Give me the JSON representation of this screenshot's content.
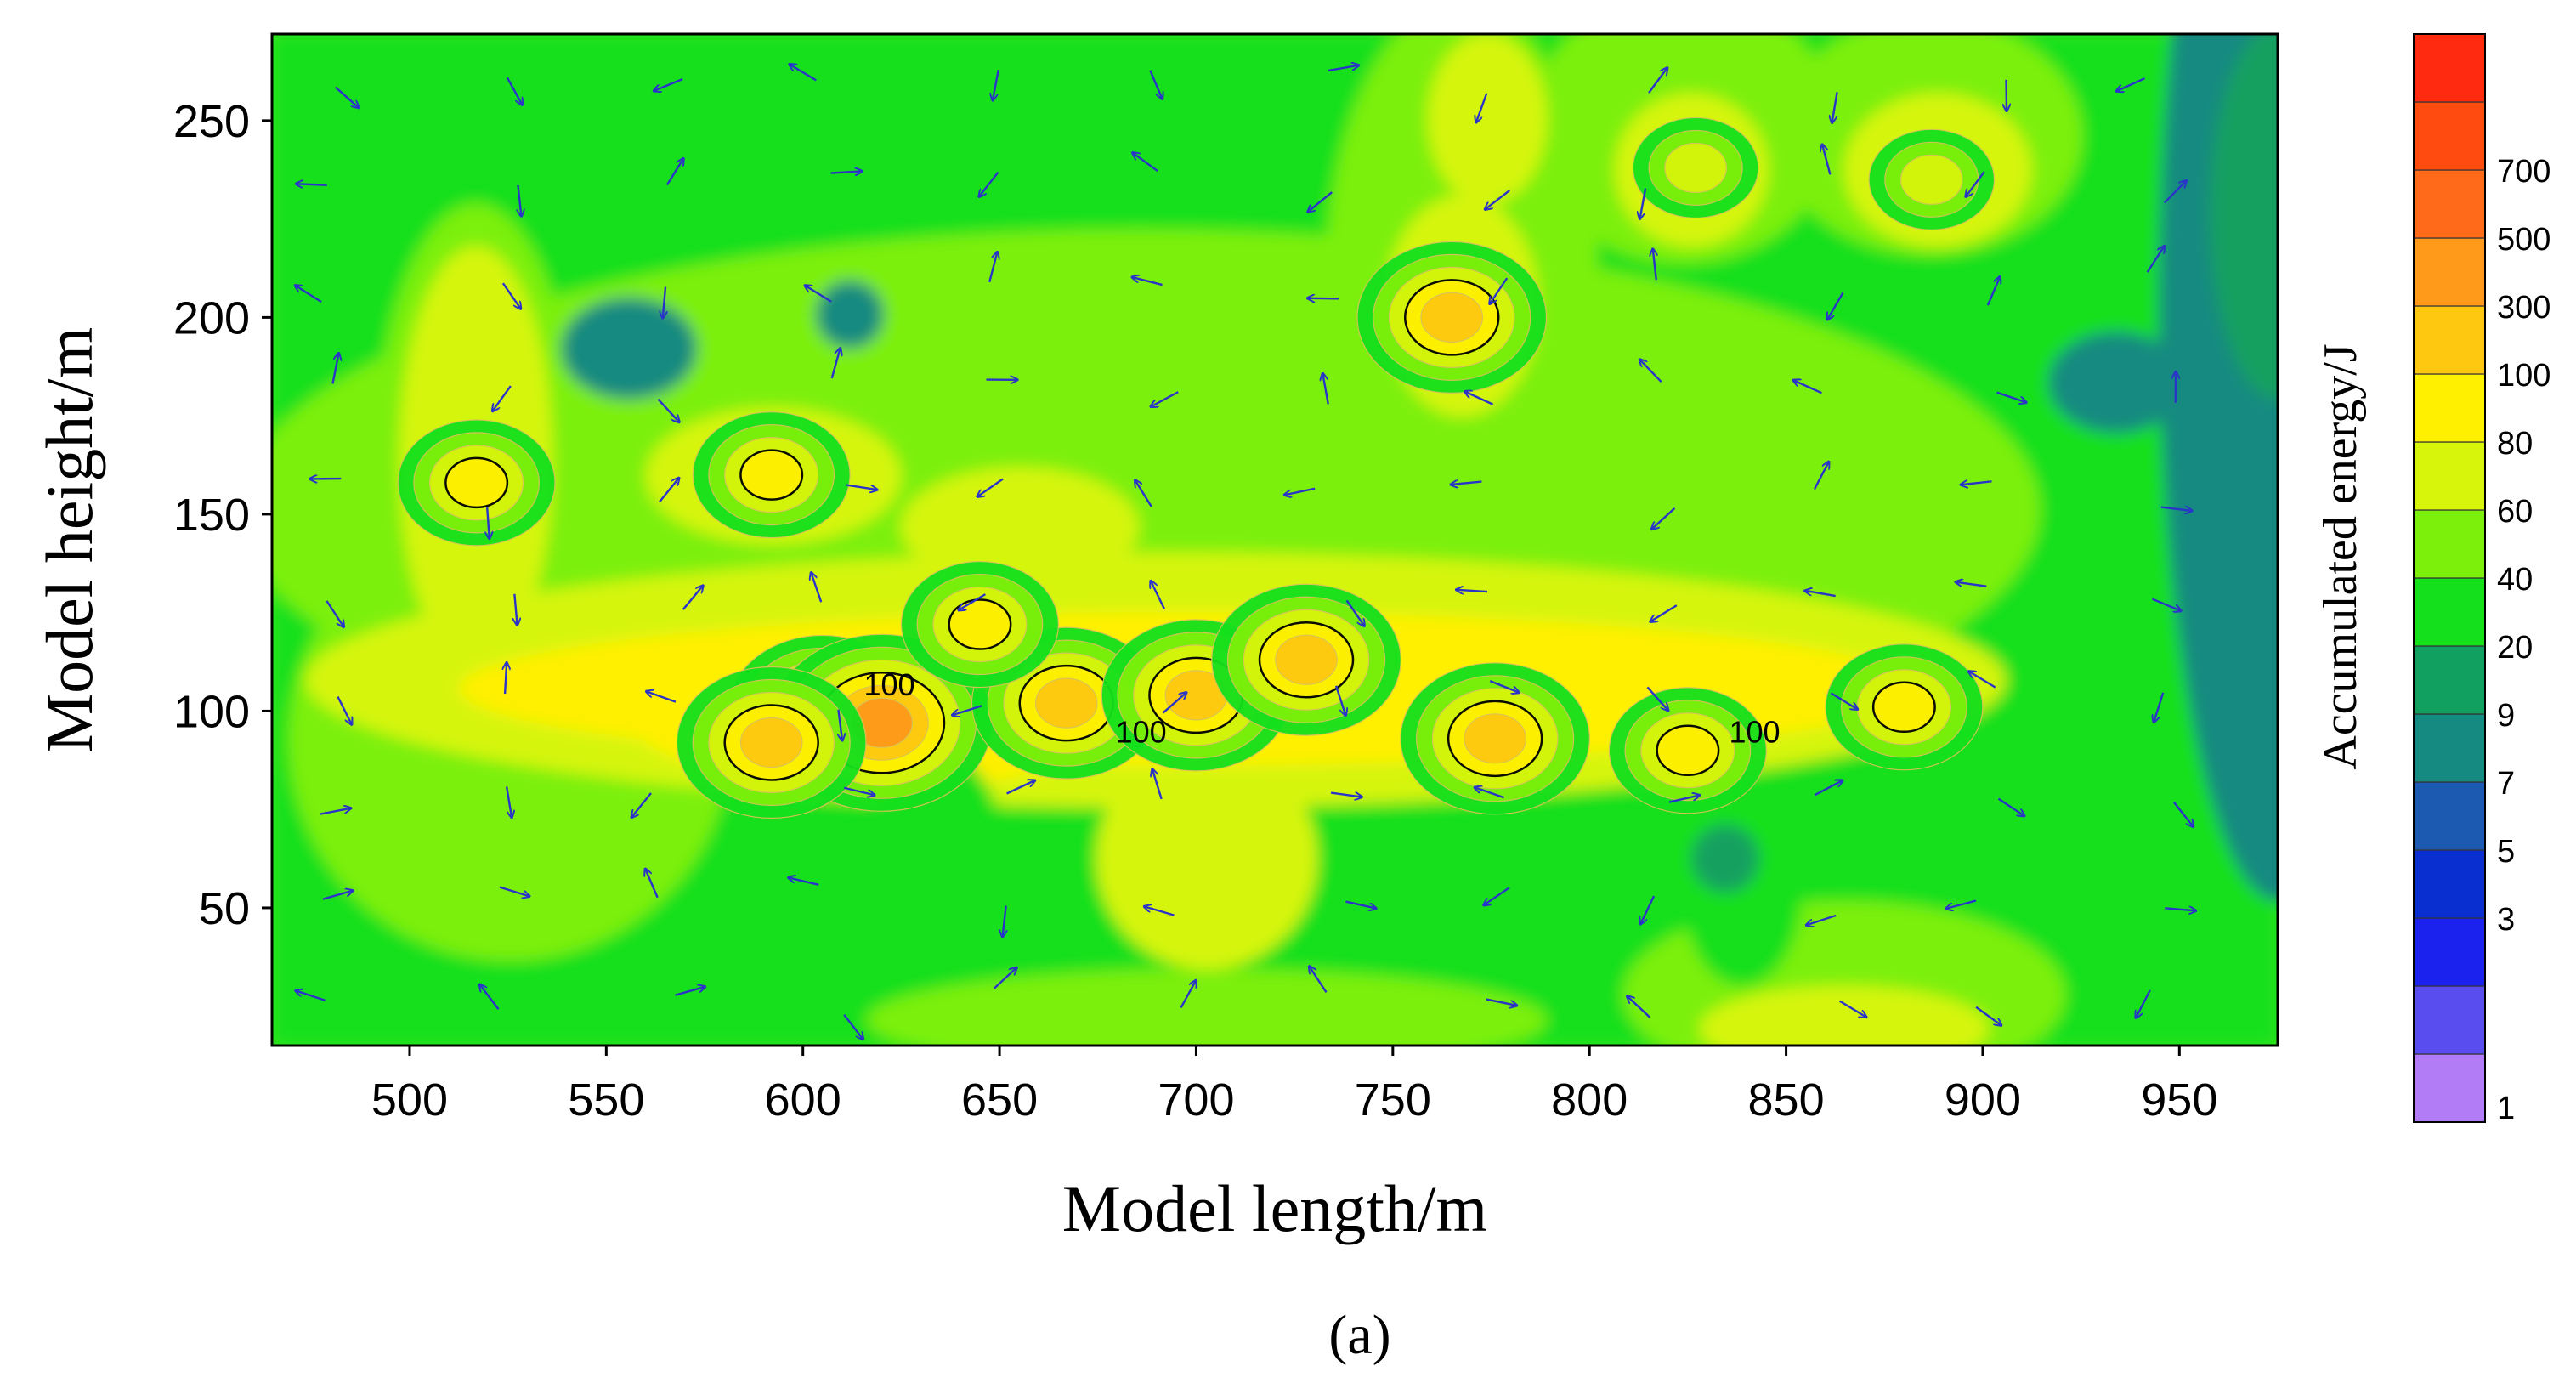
{
  "chart_data": {
    "type": "heatmap",
    "subtype": "filled-contour with flow-direction vectors",
    "xlabel": "Model length/m",
    "ylabel": "Model height/m",
    "xlim": [
      465,
      975
    ],
    "ylim": [
      15,
      272
    ],
    "xticks": [
      500,
      550,
      600,
      650,
      700,
      750,
      800,
      850,
      900,
      950
    ],
    "yticks": [
      50,
      100,
      150,
      200,
      250
    ],
    "colorbar": {
      "title": "Accumulated energy/J",
      "levels": [
        1,
        3,
        5,
        7,
        9,
        20,
        40,
        60,
        80,
        100,
        300,
        500,
        700
      ],
      "colors": [
        "#b27cf6",
        "#5a4df0",
        "#1b22ee",
        "#0a2fd0",
        "#1b5ab0",
        "#158a80",
        "#12a060",
        "#14e01c",
        "#7cf00a",
        "#d6f50a",
        "#fff000",
        "#ffc810",
        "#ff9a1a",
        "#ff6a1a",
        "#ff4a10",
        "#ff2a10"
      ]
    },
    "contour_labels": [
      {
        "x": 622,
        "y": 104,
        "label": "100"
      },
      {
        "x": 686,
        "y": 92,
        "label": "100"
      },
      {
        "x": 842,
        "y": 92,
        "label": "100"
      }
    ],
    "energy_peaks": [
      {
        "x": 605,
        "y": 100,
        "value": 400
      },
      {
        "x": 620,
        "y": 97,
        "value": 500
      },
      {
        "x": 592,
        "y": 92,
        "value": 300
      },
      {
        "x": 667,
        "y": 102,
        "value": 300
      },
      {
        "x": 700,
        "y": 104,
        "value": 300
      },
      {
        "x": 728,
        "y": 113,
        "value": 300
      },
      {
        "x": 776,
        "y": 93,
        "value": 300
      },
      {
        "x": 765,
        "y": 200,
        "value": 300
      },
      {
        "x": 517,
        "y": 158,
        "value": 120
      },
      {
        "x": 592,
        "y": 160,
        "value": 120
      },
      {
        "x": 645,
        "y": 122,
        "value": 120
      },
      {
        "x": 880,
        "y": 101,
        "value": 130
      },
      {
        "x": 825,
        "y": 90,
        "value": 120
      },
      {
        "x": 887,
        "y": 235,
        "value": 90
      },
      {
        "x": 827,
        "y": 238,
        "value": 85
      }
    ]
  },
  "panel_label": "(a)"
}
